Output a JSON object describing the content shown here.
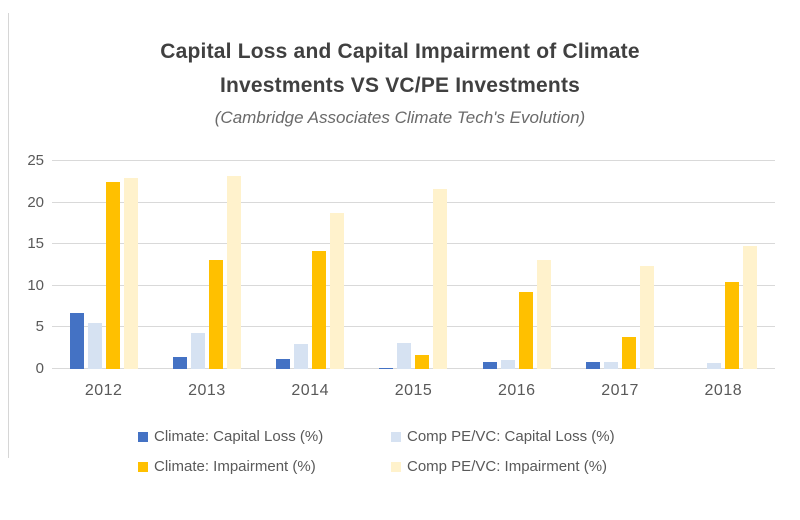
{
  "title": {
    "line1": "Capital Loss and Capital Impairment of Climate",
    "line2": "Investments VS VC/PE Investments",
    "subtitle": "(Cambridge Associates Climate Tech's Evolution)"
  },
  "colors": {
    "climate_loss": "#4472C4",
    "comp_loss": "#D6E2F2",
    "climate_imp": "#FFC000",
    "comp_imp": "#FFF2CC",
    "gridline": "#D9D9D9",
    "axis_text": "#595959",
    "title_text": "#404040"
  },
  "chart_data": {
    "type": "bar",
    "title": "Capital Loss and Capital Impairment of Climate Investments VS VC/PE Investments",
    "subtitle": "(Cambridge Associates Climate Tech's Evolution)",
    "categories": [
      "2012",
      "2013",
      "2014",
      "2015",
      "2016",
      "2017",
      "2018"
    ],
    "series": [
      {
        "name": "Climate: Capital Loss (%)",
        "color_key": "climate_loss",
        "values": [
          6.7,
          1.4,
          1.2,
          0.1,
          0.9,
          0.9,
          0
        ]
      },
      {
        "name": "Comp PE/VC: Capital Loss (%)",
        "color_key": "comp_loss",
        "values": [
          5.5,
          4.3,
          3.0,
          3.1,
          1.1,
          0.9,
          0.7
        ]
      },
      {
        "name": "Climate: Impairment (%)",
        "color_key": "climate_imp",
        "values": [
          22.5,
          13.1,
          14.2,
          1.7,
          9.3,
          3.8,
          10.4
        ]
      },
      {
        "name": "Comp PE/VC: Impairment (%)",
        "color_key": "comp_imp",
        "values": [
          23.0,
          23.2,
          18.7,
          21.6,
          13.1,
          12.4,
          14.8
        ]
      }
    ],
    "xlabel": "",
    "ylabel": "",
    "ylim": [
      0,
      25
    ],
    "yticks": [
      0,
      5,
      10,
      15,
      20,
      25
    ],
    "grid": true,
    "legend_position": "bottom"
  }
}
